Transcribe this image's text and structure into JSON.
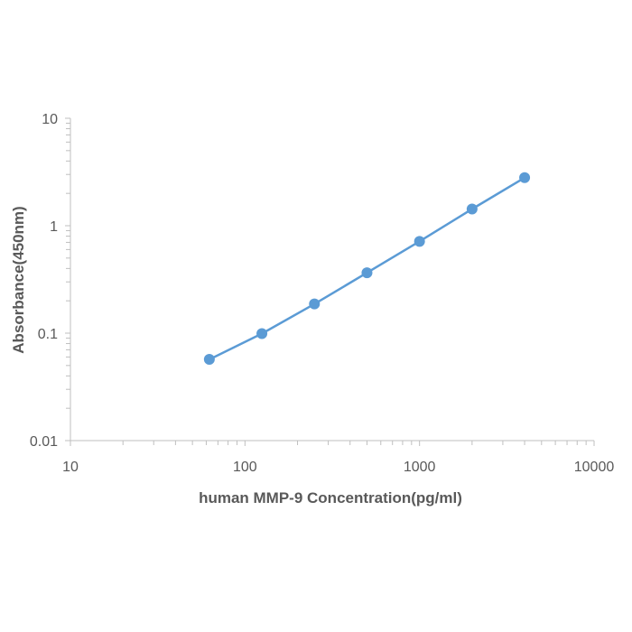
{
  "chart_data": {
    "type": "line",
    "title": "",
    "xlabel": "human MMP-9 Concentration(pg/ml)",
    "ylabel": "Absorbance(450nm)",
    "xscale": "log",
    "yscale": "log",
    "xlim": [
      10,
      10000
    ],
    "ylim": [
      0.01,
      10
    ],
    "x_ticks": [
      "10",
      "100",
      "1000",
      "10000"
    ],
    "y_ticks": [
      "0.01",
      "0.1",
      "1",
      "10"
    ],
    "grid": false,
    "legend": "none",
    "series": [
      {
        "x": [
          62.5,
          125,
          250,
          500,
          1000,
          2000,
          4000
        ],
        "y": [
          0.057,
          0.099,
          0.187,
          0.365,
          0.715,
          1.43,
          2.8
        ]
      }
    ],
    "colors": {
      "line": "#5b9bd5",
      "axis": "#bfbfbf"
    }
  }
}
